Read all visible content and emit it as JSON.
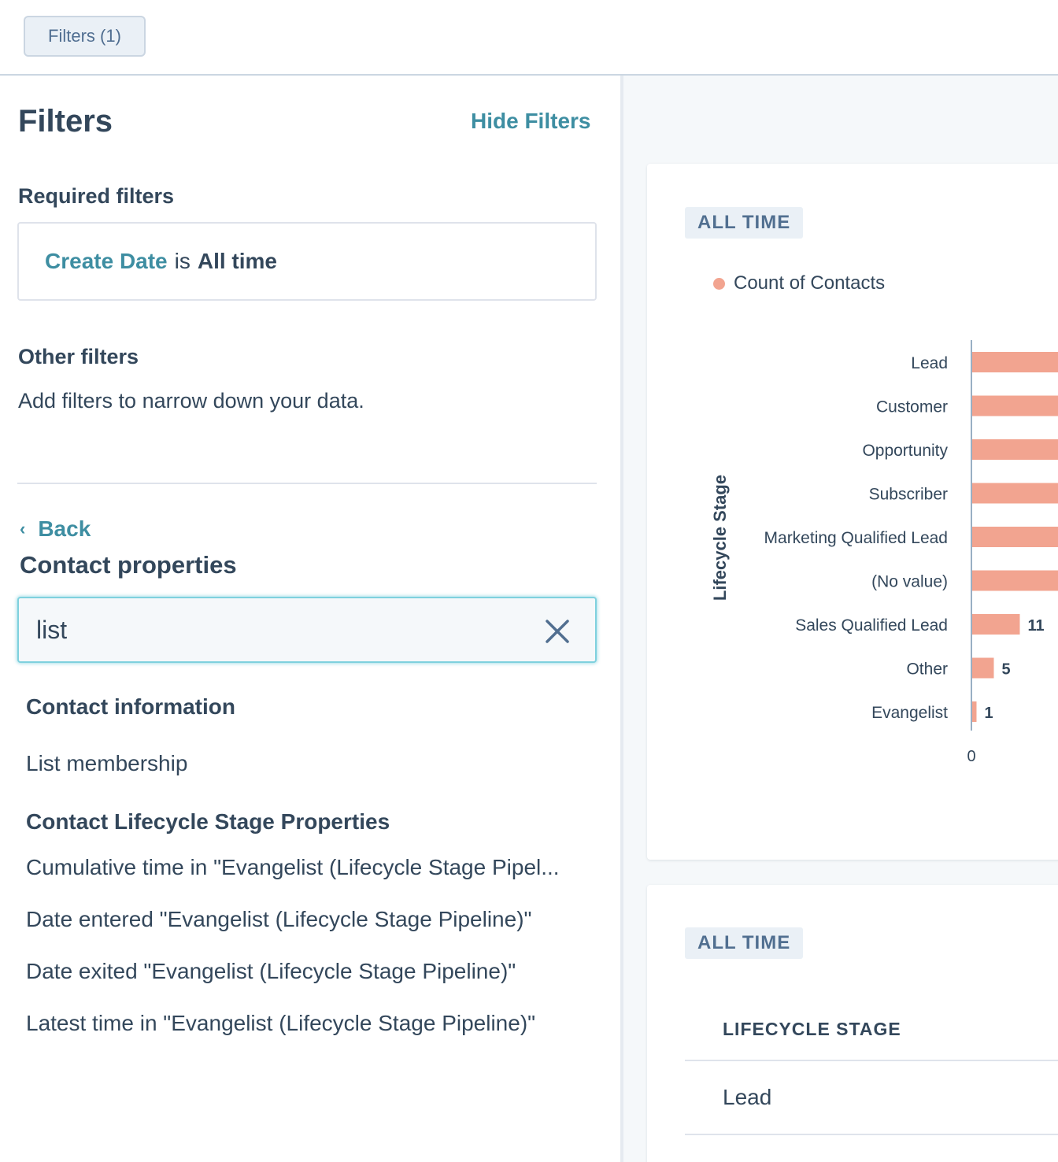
{
  "topbar": {
    "filters_button": "Filters (1)"
  },
  "panel": {
    "title": "Filters",
    "hide_link": "Hide Filters",
    "required_heading": "Required filters",
    "required_filter": {
      "property": "Create Date",
      "operator": "is",
      "value": "All time"
    },
    "other_heading": "Other filters",
    "other_description": "Add filters to narrow down your data.",
    "back_label": "Back",
    "section_title": "Contact properties",
    "search": {
      "value": "list"
    },
    "groups": [
      {
        "label": "Contact information",
        "items": [
          "List membership"
        ]
      },
      {
        "label": "Contact Lifecycle Stage Properties",
        "items": [
          "Cumulative time in \"Evangelist (Lifecycle Stage Pipel...",
          "Date entered \"Evangelist (Lifecycle Stage Pipeline)\"",
          "Date exited \"Evangelist (Lifecycle Stage Pipeline)\"",
          "Latest time in \"Evangelist (Lifecycle Stage Pipeline)\""
        ]
      }
    ]
  },
  "report_card": {
    "badge": "ALL TIME",
    "legend": "Count of Contacts",
    "colors": {
      "bar": "#f2a490",
      "link": "#3e8ea2"
    }
  },
  "chart_data": {
    "type": "bar",
    "orientation": "horizontal",
    "ylabel": "Lifecycle Stage",
    "categories": [
      "Lead",
      "Customer",
      "Opportunity",
      "Subscriber",
      "Marketing Qualified Lead",
      "(No value)",
      "Sales Qualified Lead",
      "Other",
      "Evangelist"
    ],
    "series": [
      {
        "name": "Count of Contacts",
        "values": [
          null,
          null,
          null,
          null,
          null,
          null,
          11,
          5,
          1
        ]
      }
    ],
    "data_labels": [
      "",
      "",
      "",
      "",
      "",
      "",
      "11",
      "5",
      "1"
    ],
    "x_ticks": [
      "0"
    ],
    "legend_position": "top-left"
  },
  "table_card": {
    "badge": "ALL TIME",
    "column_header": "LIFECYCLE STAGE",
    "rows": [
      "Lead"
    ]
  }
}
